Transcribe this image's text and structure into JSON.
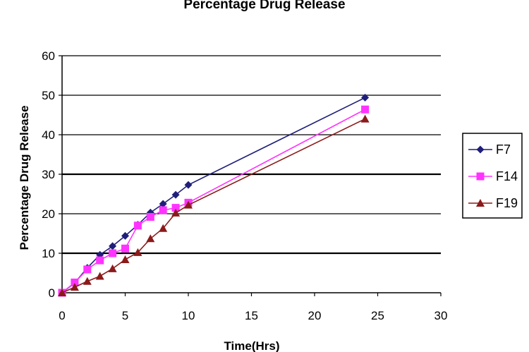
{
  "chart_data": {
    "type": "line",
    "title": "Percentage Drug Release",
    "xlabel": "Time(Hrs)",
    "ylabel": "Percentage Drug Release",
    "xlim": [
      0,
      30
    ],
    "ylim": [
      0,
      60
    ],
    "xticks": [
      0,
      5,
      10,
      15,
      20,
      25,
      30
    ],
    "yticks": [
      0,
      10,
      20,
      30,
      40,
      50,
      60
    ],
    "grid": "horizontal",
    "legend_position": "right",
    "series": [
      {
        "name": "F7",
        "color": "#1f1f7a",
        "marker": "diamond",
        "x": [
          0,
          1,
          2,
          3,
          4,
          5,
          6,
          7,
          8,
          9,
          10,
          24
        ],
        "y": [
          0,
          2.5,
          6.3,
          9.6,
          11.8,
          14.4,
          17.2,
          20.3,
          22.5,
          24.8,
          27.3,
          49.4
        ]
      },
      {
        "name": "F14",
        "color": "#ff33ff",
        "marker": "square",
        "x": [
          0,
          1,
          2,
          3,
          4,
          5,
          6,
          7,
          8,
          9,
          10,
          24
        ],
        "y": [
          0,
          2.6,
          5.9,
          8.2,
          10.0,
          11.2,
          17.0,
          19.2,
          20.9,
          21.5,
          22.8,
          46.4
        ]
      },
      {
        "name": "F19",
        "color": "#8b1a1a",
        "marker": "triangle",
        "x": [
          0,
          1,
          2,
          3,
          4,
          5,
          6,
          7,
          8,
          9,
          10,
          24
        ],
        "y": [
          0,
          1.4,
          2.9,
          4.2,
          6.1,
          8.4,
          10.2,
          13.7,
          16.3,
          20.2,
          22.2,
          44.0
        ]
      }
    ]
  }
}
